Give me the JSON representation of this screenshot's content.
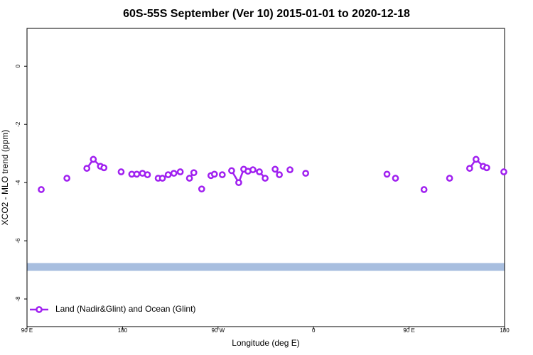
{
  "chart_data": {
    "type": "line",
    "title": "60S-55S September (Ver 10)   2015-01-01 to 2020-12-18",
    "x_label": "Longitude (deg E)",
    "y_label": "XCO2 - MLO trend (ppm)",
    "xlim": [
      90,
      540
    ],
    "xticks": [
      {
        "value": 90,
        "label": "90 E"
      },
      180,
      {
        "value": 270,
        "label": "90 W"
      },
      {
        "value": 360,
        "label": "0"
      },
      {
        "value": 450,
        "label": "90 E"
      },
      {
        "value": 540,
        "label": "180"
      }
    ],
    "ylim": [
      -8.95,
      1.3
    ],
    "yticks": [
      0,
      -2,
      -4,
      -6,
      -8
    ],
    "reference_line": -6.9,
    "reference_color": "#a8bedf",
    "legend": "bottom-left",
    "series": [
      {
        "name": "Land (Nadir&Glint) and Ocean (Glint)",
        "color": "#a020f0",
        "x": [
          103.4,
          127.6,
          146.4,
          152.5,
          159.2,
          162.5,
          178.7,
          188.7,
          193.4,
          198.8,
          203.5,
          213.6,
          217.6,
          223.0,
          228.4,
          234.4,
          243.1,
          247.2,
          254.6,
          263.3,
          266.6,
          274.0,
          282.8,
          289.5,
          294.2,
          298.2,
          302.9,
          309.0,
          314.4,
          323.8,
          327.8,
          337.8,
          352.6,
          429.2,
          437.2,
          464.1,
          488.2,
          507.1,
          513.1,
          519.8,
          523.2,
          539.3
        ],
        "values": [
          -4.24,
          -3.85,
          -3.51,
          -3.2,
          -3.44,
          -3.49,
          -3.63,
          -3.71,
          -3.71,
          -3.68,
          -3.73,
          -3.85,
          -3.85,
          -3.73,
          -3.68,
          -3.63,
          -3.85,
          -3.66,
          -4.22,
          -3.76,
          -3.71,
          -3.73,
          -3.59,
          -4.0,
          -3.54,
          -3.61,
          -3.56,
          -3.63,
          -3.85,
          -3.54,
          -3.73,
          -3.56,
          -3.68,
          -3.71,
          -3.85,
          -4.24,
          -3.85,
          -3.51,
          -3.2,
          -3.44,
          -3.49,
          -3.63
        ]
      }
    ]
  }
}
